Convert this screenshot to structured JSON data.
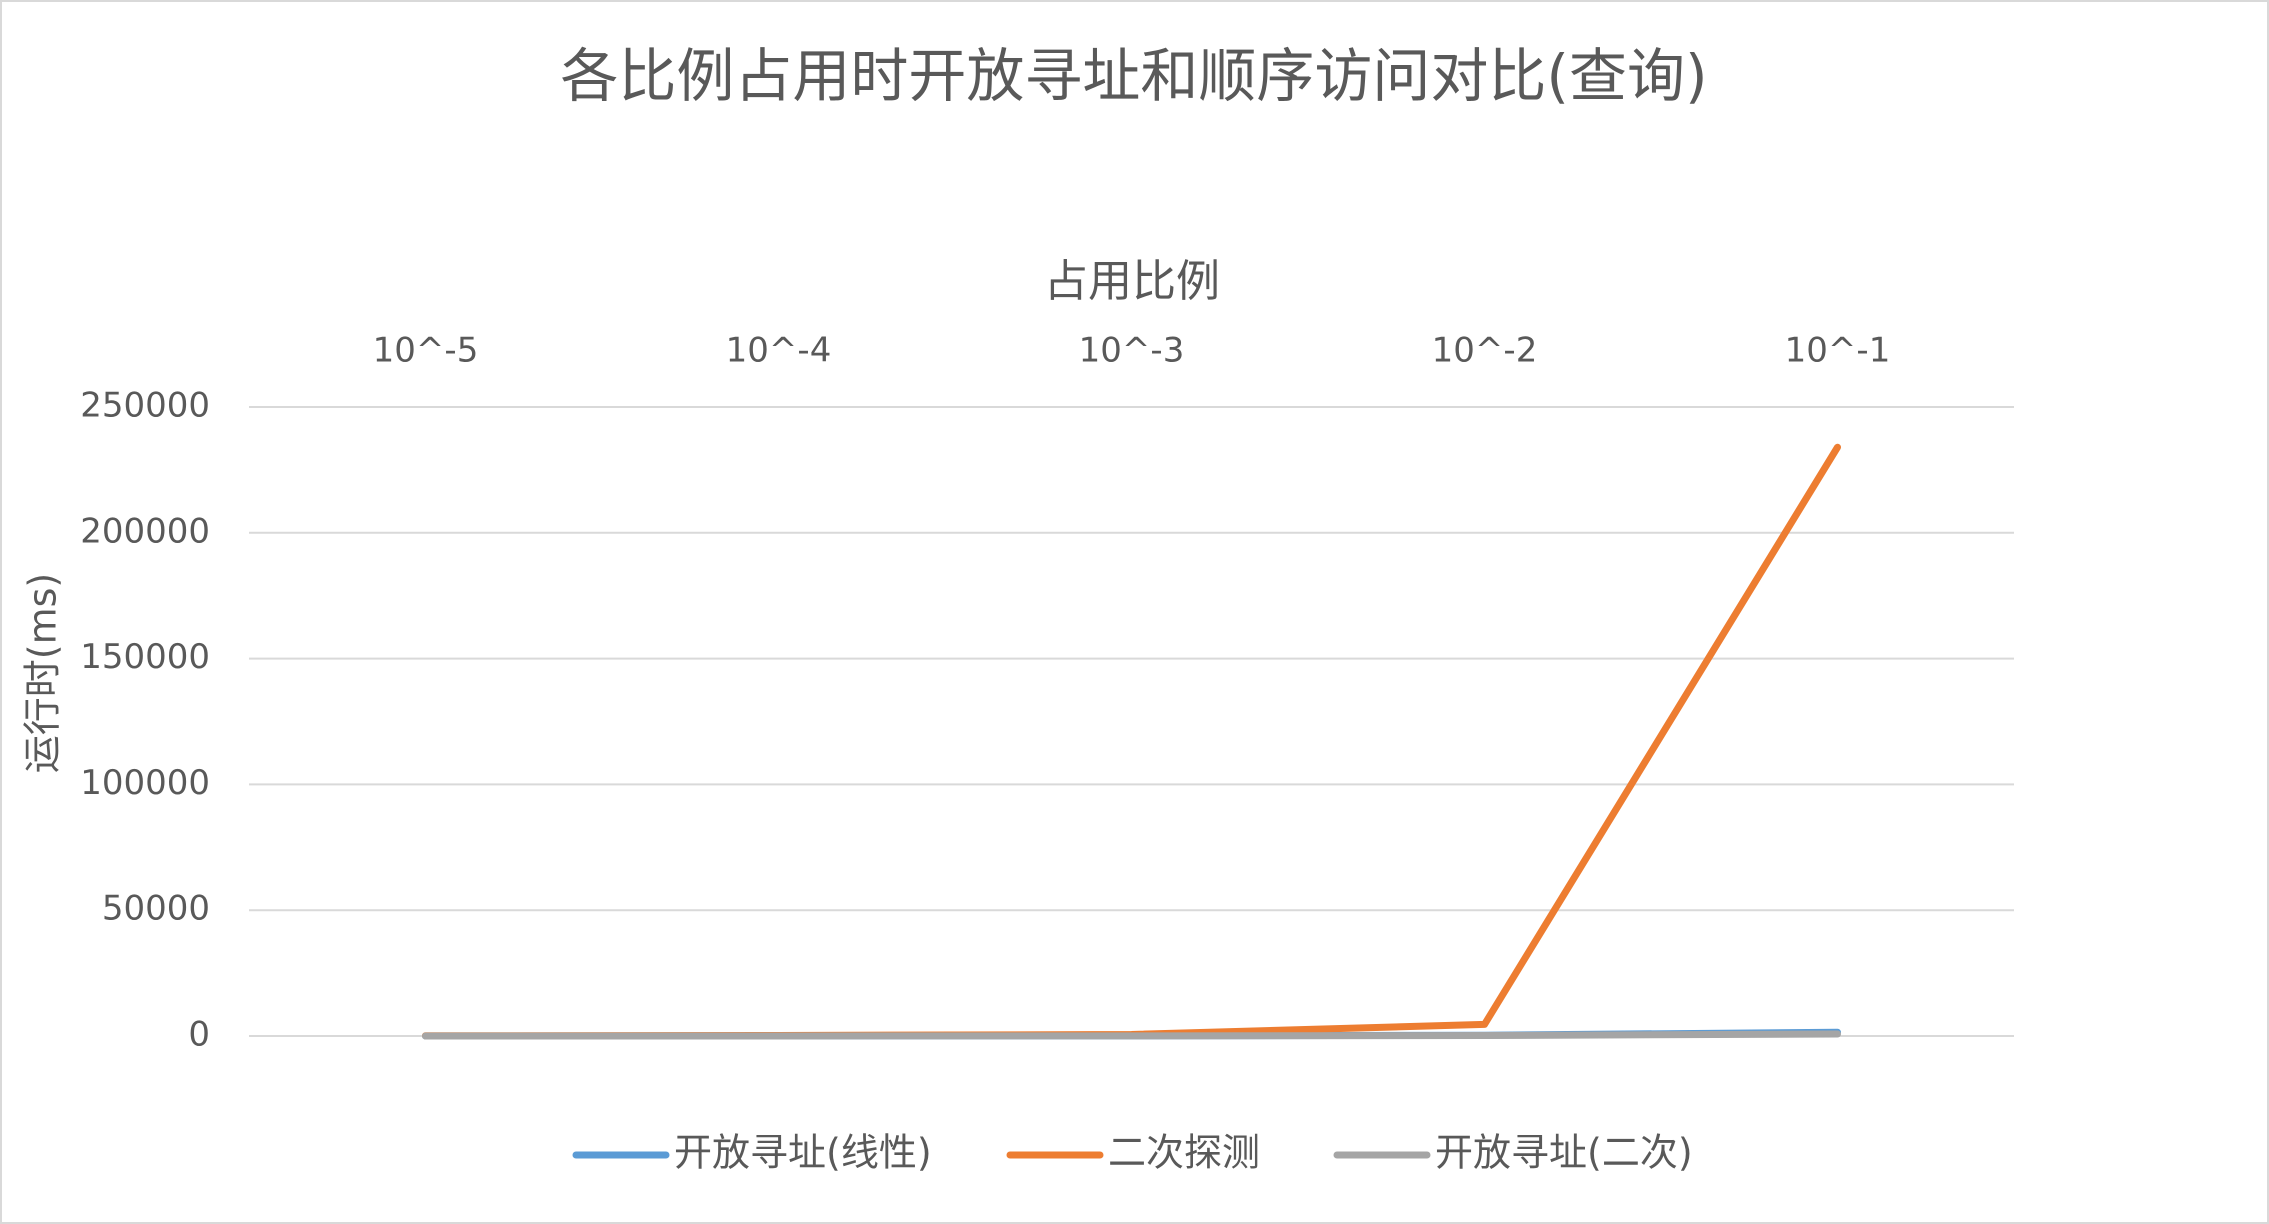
{
  "chart_data": {
    "type": "line",
    "title": "各比例占用时开放寻址和顺序访问对比(查询)",
    "x_label": "占用比例",
    "y_label": "运行时(ms)",
    "categories": [
      "10^-5",
      "10^-4",
      "10^-3",
      "10^-2",
      "10^-1"
    ],
    "series": [
      {
        "name": "开放寻址(线性)",
        "color": "#5b9bd5",
        "values": [
          10,
          20,
          60,
          300,
          1500
        ]
      },
      {
        "name": "二次探测",
        "color": "#ed7d31",
        "values": [
          100,
          200,
          600,
          4600,
          234000
        ]
      },
      {
        "name": "开放寻址(二次)",
        "color": "#a5a5a5",
        "values": [
          10,
          20,
          50,
          200,
          800
        ]
      }
    ],
    "ylim": [
      0,
      250000
    ],
    "yticks": [
      0,
      50000,
      100000,
      150000,
      200000,
      250000
    ],
    "grid": true,
    "legend": "bottom"
  }
}
